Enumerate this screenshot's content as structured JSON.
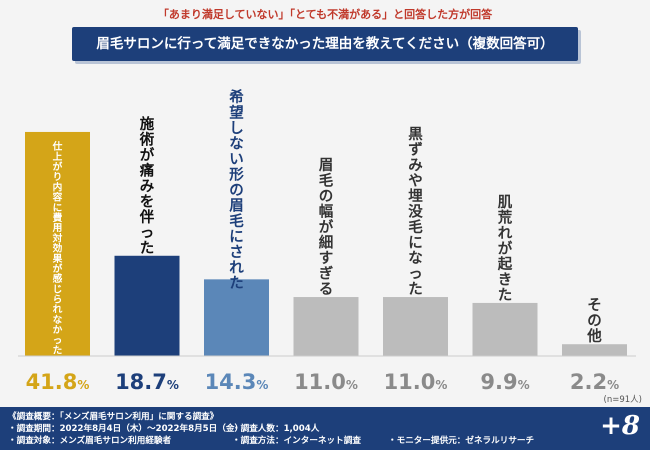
{
  "header": {
    "subtitle": "「あまり満足していない」「とても不満がある」と回答した方が回答",
    "title": "眉毛サロンに行って満足できなかった理由を教えてください（複数回答可）"
  },
  "chart_data": {
    "type": "bar",
    "title": "眉毛サロンに行って満足できなかった理由を教えてください（複数回答可）",
    "subtitle": "「あまり満足していない」「とても不満がある」と回答した方が回答",
    "categories": [
      "仕上がり内容に費用対効果が感じられなかった",
      "施術が痛みを伴った",
      "希望しない形の眉毛にされた",
      "眉毛の幅が細すぎる",
      "黒ずみや埋没毛になった",
      "肌荒れが起きた",
      "その他"
    ],
    "values": [
      41.8,
      18.7,
      14.3,
      11.0,
      11.0,
      9.9,
      2.2
    ],
    "value_labels": [
      "41.8",
      "18.7",
      "14.3",
      "11.0",
      "11.0",
      "9.9",
      "2.2"
    ],
    "unit": "%",
    "sample_note": "(n=91人)",
    "ylim": [
      0,
      50
    ],
    "colors": [
      "#d4a518",
      "#1d3f7a",
      "#5b87b8",
      "#bcbcbc",
      "#bcbcbc",
      "#bcbcbc",
      "#bcbcbc"
    ],
    "label_colors": [
      "#ffffff",
      "#111111",
      "#1d3f7a",
      "#333333",
      "#333333",
      "#333333",
      "#333333"
    ],
    "value_colors": [
      "#d4a518",
      "#1d3f7a",
      "#5b87b8",
      "#8a8a8a",
      "#8a8a8a",
      "#8a8a8a",
      "#8a8a8a"
    ]
  },
  "footer": {
    "overview": "《調査概要：「メンズ眉毛サロン利用」に関する調査》",
    "period": "・調査期間：2022年8月4日（木）〜2022年8月5日（金）",
    "target": "・調査対象：メンズ眉毛サロン利用経験者",
    "count": "・調査人数：1,004人",
    "method": "・調査方法：インターネット調査",
    "provider": "・モニター提供元：ゼネラルリサーチ",
    "logo": "+8"
  }
}
